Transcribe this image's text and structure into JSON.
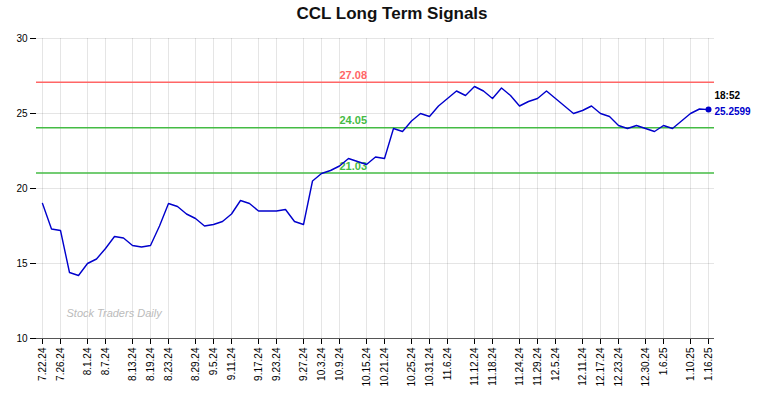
{
  "chart_data": {
    "type": "line",
    "title": "CCL Long Term Signals",
    "categories": [
      "7.22.24",
      null,
      "7.26.24",
      null,
      null,
      "8.1.24",
      null,
      "8.7.24",
      null,
      null,
      "8.13.24",
      null,
      "8.19.24",
      null,
      "8.23.24",
      null,
      null,
      "8.29.24",
      null,
      "9.5.24",
      null,
      "9.11.24",
      null,
      null,
      "9.17.24",
      null,
      "9.23.24",
      null,
      null,
      "9.27.24",
      null,
      "10.3.24",
      null,
      "10.9.24",
      null,
      null,
      "10.15.24",
      null,
      "10.21.24",
      null,
      null,
      "10.25.24",
      null,
      "10.31.24",
      null,
      "11.6.24",
      null,
      null,
      "11.12.24",
      null,
      "11.18.24",
      null,
      null,
      "11.24.24",
      null,
      "11.29.24",
      null,
      "12.5.24",
      null,
      null,
      "12.11.24",
      null,
      "12.17.24",
      null,
      "12.23.24",
      null,
      null,
      "12.30.24",
      null,
      "1.6.25",
      null,
      null,
      "1.10.25",
      null,
      "1.16.25"
    ],
    "values": [
      19.0,
      17.3,
      17.2,
      14.4,
      14.2,
      15.0,
      15.3,
      16.0,
      16.8,
      16.7,
      16.2,
      16.1,
      16.2,
      17.5,
      19.0,
      18.8,
      18.3,
      18.0,
      17.5,
      17.6,
      17.8,
      18.3,
      19.2,
      19.0,
      18.5,
      18.5,
      18.5,
      18.6,
      17.8,
      17.6,
      20.5,
      21.0,
      21.2,
      21.5,
      22.0,
      21.8,
      21.6,
      22.1,
      22.0,
      24.0,
      23.8,
      24.5,
      25.0,
      24.8,
      25.5,
      26.0,
      26.5,
      26.2,
      26.8,
      26.5,
      26.0,
      26.7,
      26.2,
      25.5,
      25.8,
      26.0,
      26.5,
      26.0,
      25.5,
      25.0,
      25.2,
      25.5,
      25.0,
      24.8,
      24.2,
      24.0,
      24.2,
      24.0,
      23.8,
      24.2,
      24.0,
      24.5,
      25.0,
      25.3,
      25.2599
    ],
    "color": "#0000cc",
    "reference_lines": [
      {
        "value": 27.08,
        "label": "27.08",
        "color": "#ff6666"
      },
      {
        "value": 24.05,
        "label": "24.05",
        "color": "#44bb44"
      },
      {
        "value": 21.03,
        "label": "21.03",
        "color": "#44bb44"
      }
    ],
    "last_point_labels": [
      "18:52",
      "25.2599"
    ],
    "watermark": "Stock Traders Daily",
    "ylim": [
      10,
      30
    ],
    "yticks": [
      10,
      15,
      20,
      25,
      30
    ],
    "grid": true
  }
}
